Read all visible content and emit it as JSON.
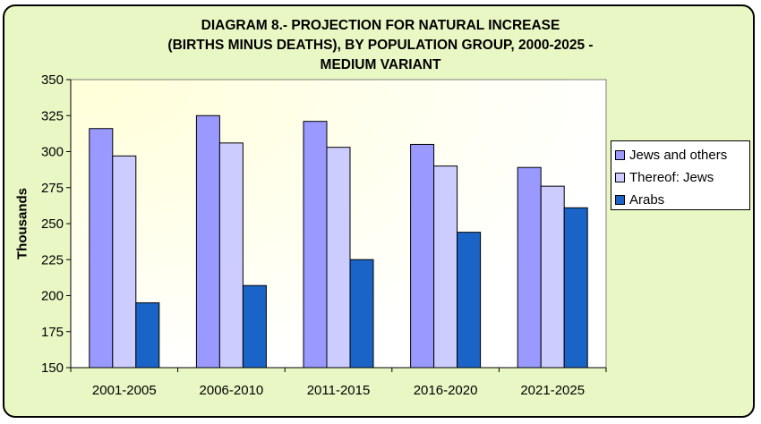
{
  "chart_data": {
    "type": "bar",
    "title_lines": [
      "DIAGRAM 8.- PROJECTION FOR NATURAL INCREASE",
      "(BIRTHS MINUS DEATHS), BY POPULATION GROUP, 2000-2025 -",
      "MEDIUM VARIANT"
    ],
    "ylabel": "Thousands",
    "ylim": [
      150,
      350
    ],
    "yticks": [
      "150",
      "175",
      "200",
      "225",
      "250",
      "275",
      "300",
      "325",
      "350"
    ],
    "categories": [
      "2001-2005",
      "2006-2010",
      "2011-2015",
      "2016-2020",
      "2021-2025"
    ],
    "series": [
      {
        "name": "Jews and others",
        "color": "#9999ff",
        "values": [
          316,
          325,
          321,
          305,
          289
        ]
      },
      {
        "name": "Thereof: Jews",
        "color": "#ccccff",
        "values": [
          297,
          306,
          303,
          290,
          276
        ]
      },
      {
        "name": "Arabs",
        "color": "#1a64c8",
        "values": [
          195,
          207,
          225,
          244,
          261
        ]
      }
    ],
    "legend_position": "right",
    "grid": false
  }
}
